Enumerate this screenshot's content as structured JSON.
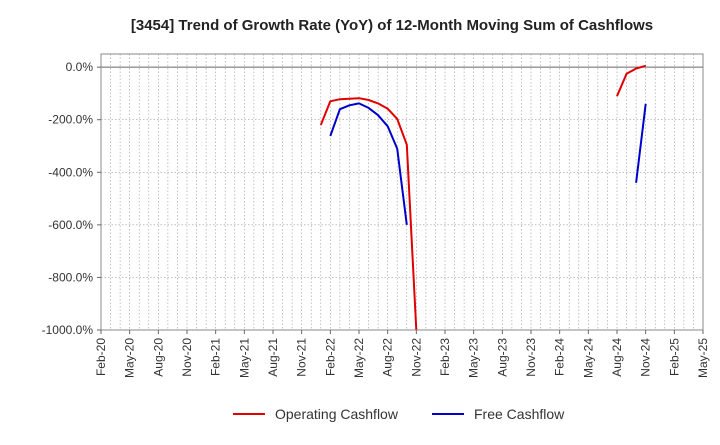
{
  "chart_data": {
    "type": "line",
    "title": "[3454]  Trend of Growth Rate (YoY) of 12-Month Moving Sum of Cashflows",
    "xlabel": "",
    "ylabel": "",
    "ylim": [
      -1000,
      50
    ],
    "yticks": [
      0,
      -200,
      -400,
      -600,
      -800,
      -1000
    ],
    "ytick_labels": [
      "0.0%",
      "-200.0%",
      "-400.0%",
      "-600.0%",
      "-800.0%",
      "-1000.0%"
    ],
    "x_start_month": "2020-02",
    "x_end_month": "2025-05",
    "xtick_labels": [
      "Feb-20",
      "May-20",
      "Aug-20",
      "Nov-20",
      "Feb-21",
      "May-21",
      "Aug-21",
      "Nov-21",
      "Feb-22",
      "May-22",
      "Aug-22",
      "Nov-22",
      "Feb-23",
      "May-23",
      "Aug-23",
      "Nov-23",
      "Feb-24",
      "May-24",
      "Aug-24",
      "Nov-24",
      "Feb-25",
      "May-25"
    ],
    "grid": true,
    "legend_position": "bottom-center",
    "series": [
      {
        "name": "Operating Cashflow",
        "color": "#e00000",
        "points": [
          [
            "2022-01",
            -220
          ],
          [
            "2022-02",
            -130
          ],
          [
            "2022-03",
            -122
          ],
          [
            "2022-04",
            -120
          ],
          [
            "2022-05",
            -118
          ],
          [
            "2022-06",
            -125
          ],
          [
            "2022-07",
            -138
          ],
          [
            "2022-08",
            -158
          ],
          [
            "2022-09",
            -197
          ],
          [
            "2022-10",
            -295
          ],
          [
            "2022-11",
            -1000
          ],
          null,
          [
            "2024-08",
            -110
          ],
          [
            "2024-09",
            -25
          ],
          [
            "2024-10",
            -5
          ],
          [
            "2024-11",
            5
          ]
        ]
      },
      {
        "name": "Free Cashflow",
        "color": "#0000cc",
        "points": [
          [
            "2022-02",
            -262
          ],
          [
            "2022-03",
            -160
          ],
          [
            "2022-04",
            -145
          ],
          [
            "2022-05",
            -138
          ],
          [
            "2022-06",
            -155
          ],
          [
            "2022-07",
            -183
          ],
          [
            "2022-08",
            -225
          ],
          [
            "2022-09",
            -310
          ],
          [
            "2022-10",
            -600
          ],
          null,
          [
            "2024-10",
            -440
          ],
          [
            "2024-11",
            -140
          ]
        ]
      }
    ]
  }
}
